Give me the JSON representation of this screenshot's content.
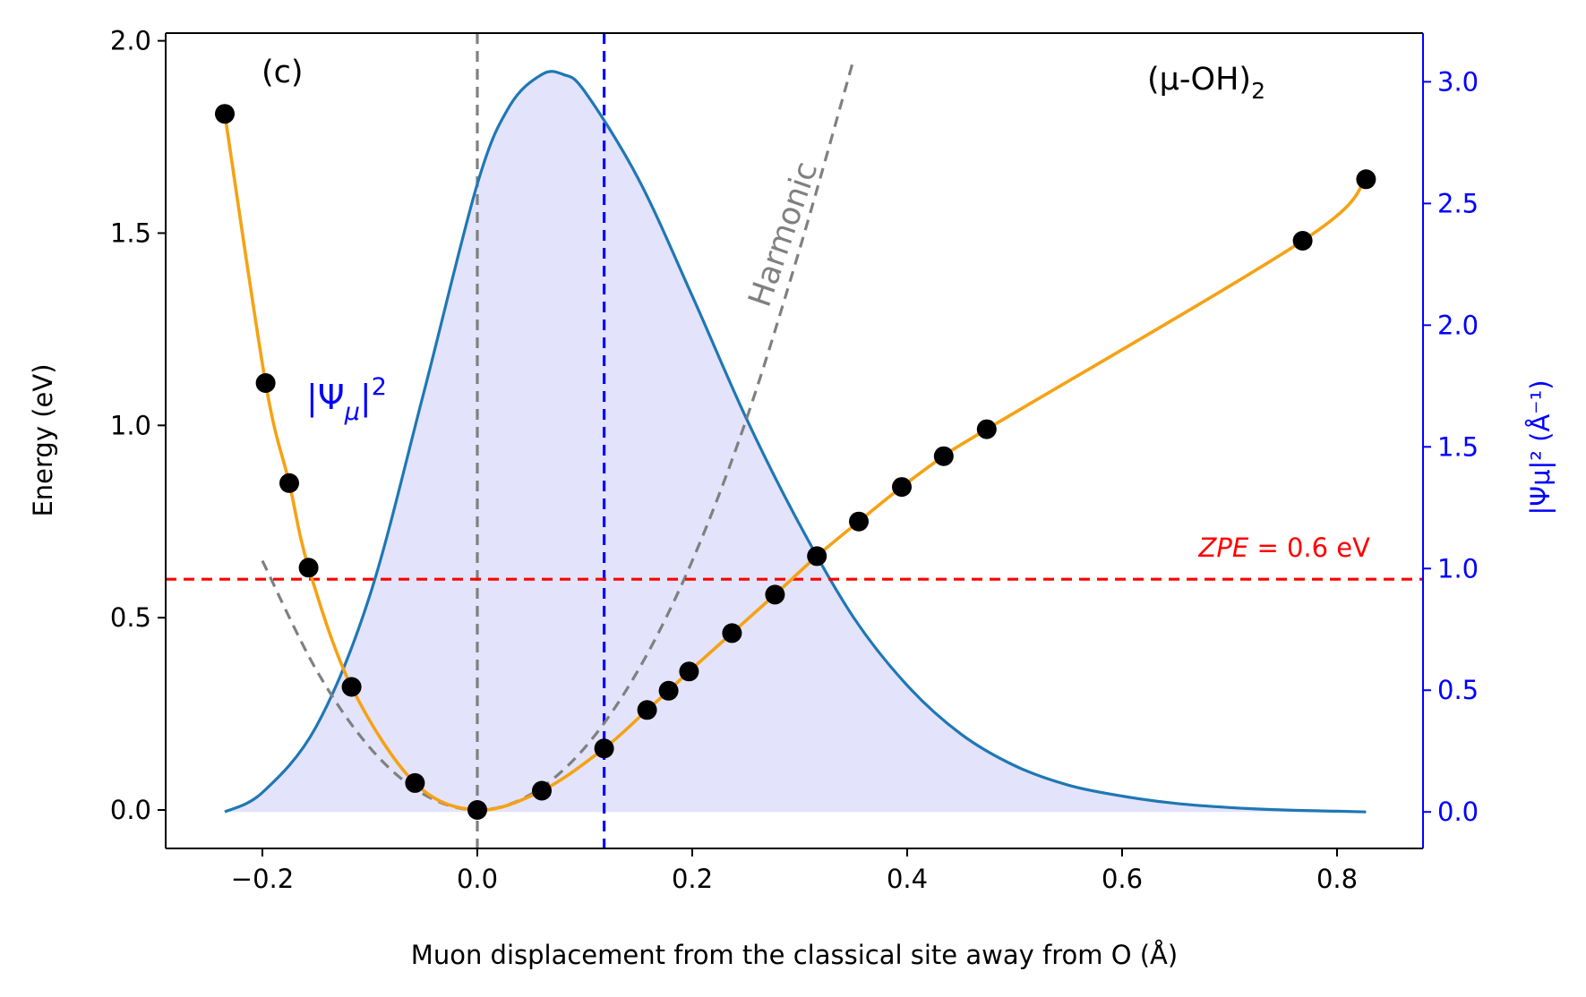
{
  "chart_data": {
    "type": "line",
    "panel_label": "(c)",
    "structure_label": "(μ-OH)",
    "structure_subscript": "2",
    "xlabel": "Muon displacement from the classical site away from O (Å)",
    "ylabel_left": "Energy (eV)",
    "ylabel_right": "|Ψμ|² (Å⁻¹)",
    "xlim": [
      -0.29,
      0.88
    ],
    "ylim_left": [
      -0.1,
      2.02
    ],
    "ylim_right": [
      -0.15,
      3.2
    ],
    "x_ticks": [
      -0.2,
      0.0,
      0.2,
      0.4,
      0.6,
      0.8
    ],
    "x_tick_labels": [
      "−0.2",
      "0.0",
      "0.2",
      "0.4",
      "0.6",
      "0.8"
    ],
    "y_left_ticks": [
      0.0,
      0.5,
      1.0,
      1.5,
      2.0
    ],
    "y_left_tick_labels": [
      "0.0",
      "0.5",
      "1.0",
      "1.5",
      "2.0"
    ],
    "y_right_ticks": [
      0.0,
      0.5,
      1.0,
      1.5,
      2.0,
      2.5,
      3.0
    ],
    "y_right_tick_labels": [
      "0.0",
      "0.5",
      "1.0",
      "1.5",
      "2.0",
      "2.5",
      "3.0"
    ],
    "grid": false,
    "legend": "none",
    "series": [
      {
        "name": "Energy",
        "kind": "scatter+line",
        "axis": "left",
        "x": [
          -0.235,
          -0.197,
          -0.175,
          -0.157,
          -0.117,
          -0.058,
          0.0,
          0.06,
          0.118,
          0.158,
          0.178,
          0.197,
          0.237,
          0.277,
          0.316,
          0.355,
          0.395,
          0.434,
          0.474,
          0.768,
          0.827
        ],
        "y": [
          1.81,
          1.11,
          0.85,
          0.63,
          0.32,
          0.07,
          0.0,
          0.05,
          0.16,
          0.26,
          0.31,
          0.36,
          0.46,
          0.56,
          0.66,
          0.75,
          0.84,
          0.92,
          0.99,
          1.48,
          1.64
        ],
        "marker_color": "#000000",
        "line_color": "#f5a214"
      },
      {
        "name": "Harmonic",
        "kind": "dashed-line",
        "axis": "left",
        "x": [
          -0.2,
          -0.15,
          -0.1,
          -0.05,
          0.0,
          0.05,
          0.1,
          0.15,
          0.2,
          0.25,
          0.3,
          0.35
        ],
        "y": [
          0.648,
          0.365,
          0.162,
          0.041,
          0.0,
          0.041,
          0.162,
          0.365,
          0.648,
          1.013,
          1.459,
          1.95
        ],
        "color": "#808080"
      },
      {
        "name": "|Ψμ|²",
        "kind": "filled-line",
        "axis": "right",
        "x": [
          -0.235,
          -0.2,
          -0.15,
          -0.1,
          -0.05,
          0.0,
          0.03,
          0.06,
          0.08,
          0.1,
          0.15,
          0.2,
          0.25,
          0.3,
          0.35,
          0.4,
          0.45,
          0.5,
          0.55,
          0.6,
          0.65,
          0.7,
          0.75,
          0.8,
          0.827
        ],
        "y": [
          0.0,
          0.08,
          0.35,
          0.89,
          1.72,
          2.58,
          2.9,
          3.03,
          3.03,
          2.96,
          2.6,
          2.12,
          1.62,
          1.18,
          0.8,
          0.52,
          0.32,
          0.19,
          0.11,
          0.065,
          0.035,
          0.018,
          0.008,
          0.003,
          0.0
        ],
        "color": "#1f77b4",
        "fill": "#e3e3fb"
      }
    ],
    "reference_lines": [
      {
        "orientation": "vertical",
        "x": 0.0,
        "color": "#808080",
        "style": "dashed"
      },
      {
        "orientation": "vertical",
        "x": 0.118,
        "color": "#0000ff",
        "style": "dashed"
      },
      {
        "orientation": "horizontal",
        "y": 0.6,
        "axis": "left",
        "color": "#ff0000",
        "style": "dashed"
      }
    ],
    "annotations": {
      "harmonic": "Harmonic",
      "psi_base": "|Ψ",
      "psi_sub": "μ",
      "psi_tail": "|",
      "psi_sup": "2",
      "zpe_symbol": "ZPE",
      "zpe_text": " = 0.6 eV"
    },
    "colors": {
      "axis_right": "#0000ff",
      "zpe": "#ff0000",
      "harmonic_text": "#808080",
      "psi_label": "#0000ff"
    }
  }
}
